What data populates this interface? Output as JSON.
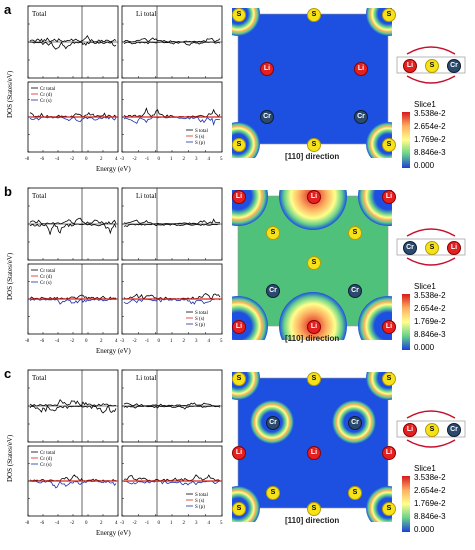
{
  "panels": [
    {
      "label": "a",
      "top_left_title": "Total",
      "top_right_title": "Li total",
      "legend_left": [
        "Cr total",
        "Cr (d)",
        "Cr (s)"
      ],
      "legend_right": [
        "S total",
        "S (s)",
        "S (p)"
      ],
      "direction": "[110] direction",
      "schematic": [
        "Li",
        "S",
        "Cr"
      ]
    },
    {
      "label": "b",
      "top_left_title": "Total",
      "top_right_title": "Li total",
      "legend_left": [
        "Cr total",
        "Cr (d)",
        "Cr (s)"
      ],
      "legend_right": [
        "S total",
        "S (s)",
        "S (p)"
      ],
      "direction": "[110] direction",
      "schematic": [
        "Cr",
        "S",
        "Li"
      ]
    },
    {
      "label": "c",
      "top_left_title": "Total",
      "top_right_title": "Li total",
      "legend_left": [
        "Cr total",
        "Cr (d)",
        "Cr (s)"
      ],
      "legend_right": [
        "S total",
        "S (s)",
        "S (p)"
      ],
      "direction": "[110] direction",
      "schematic": [
        "Li",
        "S",
        "Cr"
      ]
    }
  ],
  "axes": {
    "ylabel": "DOS (States/eV)",
    "xlabel": "Energy (eV)",
    "xticks": [
      "-8",
      "-6",
      "-4",
      "-2",
      "0",
      "2",
      "4"
    ],
    "xticks_right": [
      "-3",
      "-2",
      "-1",
      "0",
      "1",
      "2",
      "3",
      "4",
      "5"
    ]
  },
  "colorbar": {
    "title": "Slice1",
    "values": [
      "3.538e-2",
      "2.654e-2",
      "1.769e-2",
      "8.846e-3",
      "0.000"
    ],
    "colors": [
      "#d7191c",
      "#fdae61",
      "#ffff8c",
      "#66d18a",
      "#1c3fd9"
    ]
  },
  "atoms": {
    "s": "S",
    "li": "Li",
    "cr": "Cr"
  },
  "colors": {
    "total": "#000000",
    "d": "#1b2fa8",
    "s": "#e0241c",
    "map_bg": "#1d4fe0"
  }
}
